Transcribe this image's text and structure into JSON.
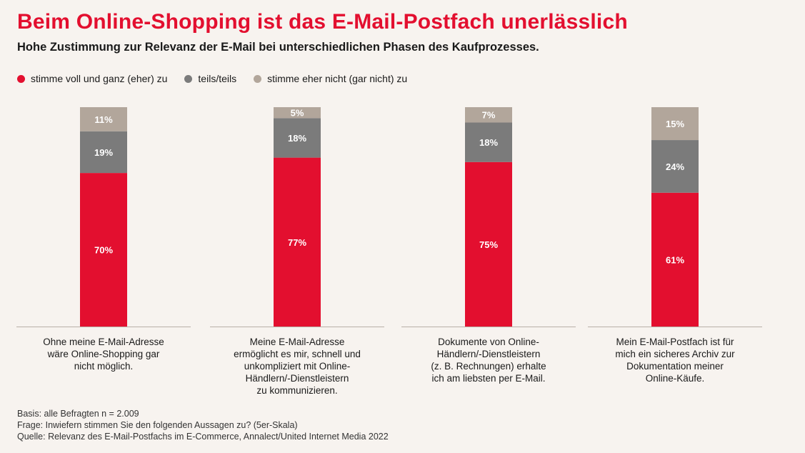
{
  "title": "Beim Online-Shopping ist das E-Mail-Postfach unerlässlich",
  "subtitle": "Hohe Zustimmung zur Relevanz der E-Mail bei unterschiedlichen Phasen des Kaufprozesses.",
  "legend": [
    {
      "label": "stimme voll und ganz (eher) zu",
      "color": "#e30f2f"
    },
    {
      "label": "teils/teils",
      "color": "#7b7b7b"
    },
    {
      "label": "stimme eher nicht (gar nicht) zu",
      "color": "#b2a69b"
    }
  ],
  "chart_data": {
    "type": "bar",
    "stacked": true,
    "categories": [
      "Ohne meine E-Mail-Adresse wäre Online-Shopping gar nicht möglich.",
      "Meine E-Mail-Adresse ermöglicht es mir, schnell und unkompliziert mit Online-Händlern/-Dienstleistern zu kommunizieren.",
      "Dokumente von Online-Händlern/-Dienstleistern (z. B. Rechnungen) erhalte ich am liebsten per E-Mail.",
      "Mein E-Mail-Postfach ist für mich ein sicheres Archiv zur Dokumentation meiner Online-Käufe."
    ],
    "category_lines": [
      [
        "Ohne meine E-Mail-Adresse",
        "wäre Online-Shopping gar",
        "nicht möglich."
      ],
      [
        "Meine E-Mail-Adresse",
        "ermöglicht es mir, schnell und",
        "unkompliziert mit Online-",
        "Händlern/-Dienstleistern",
        "zu kommunizieren."
      ],
      [
        "Dokumente von Online-",
        "Händlern/-Dienstleistern",
        "(z. B. Rechnungen) erhalte",
        "ich am liebsten per E-Mail."
      ],
      [
        "Mein E-Mail-Postfach ist für",
        "mich ein sicheres Archiv zur",
        "Dokumentation meiner",
        "Online-Käufe."
      ]
    ],
    "series": [
      {
        "name": "stimme voll und ganz (eher) zu",
        "color": "#e30f2f",
        "values": [
          70,
          77,
          75,
          61
        ],
        "labels": [
          "70%",
          "77%",
          "75%",
          "61%"
        ]
      },
      {
        "name": "teils/teils",
        "color": "#7b7b7b",
        "values": [
          19,
          18,
          18,
          24
        ],
        "labels": [
          "19%",
          "18%",
          "18%",
          "24%"
        ]
      },
      {
        "name": "stimme eher nicht (gar nicht) zu",
        "color": "#b2a69b",
        "values": [
          11,
          5,
          7,
          15
        ],
        "labels": [
          "11%",
          "5%",
          "7%",
          "15%"
        ]
      }
    ],
    "ylim": [
      0,
      100
    ],
    "grid": false,
    "legend_position": "top-left"
  },
  "footer": [
    "Basis: alle Befragten n = 2.009",
    "Frage: Inwiefern stimmen Sie den folgenden Aussagen zu? (5er-Skala)",
    "Quelle: Relevanz des E-Mail-Postfachs im E-Commerce, Annalect/United Internet Media 2022"
  ]
}
